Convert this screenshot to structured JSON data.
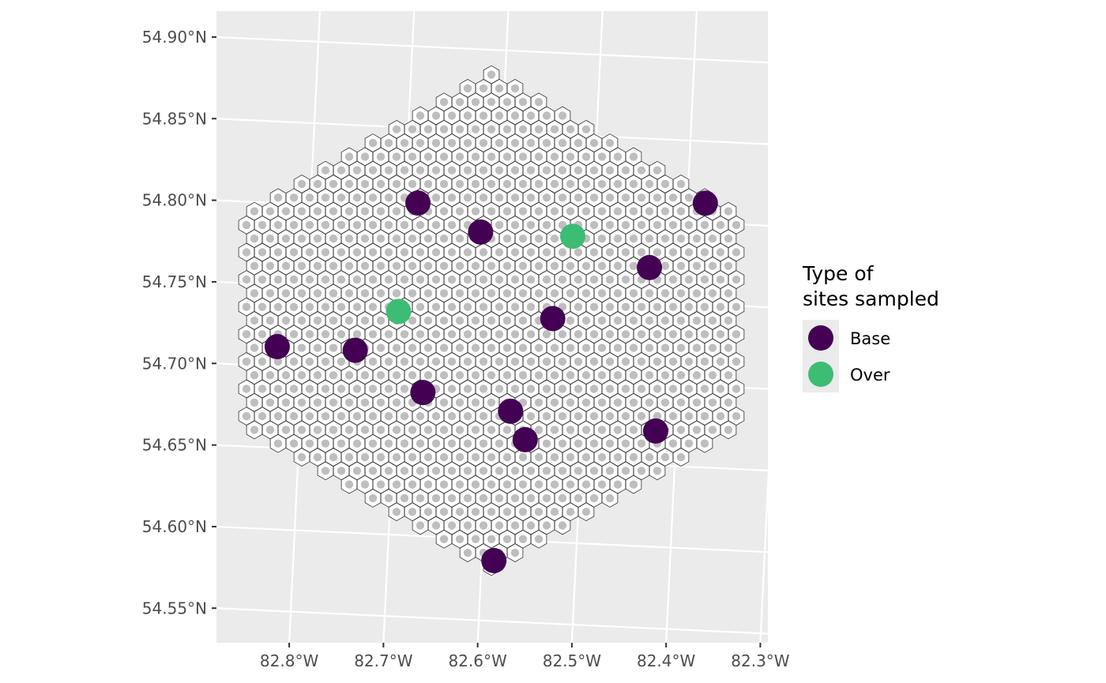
{
  "chart_data": {
    "type": "scatter",
    "title": "",
    "xlabel": "",
    "ylabel": "",
    "xlim": [
      -82.86,
      -82.28
    ],
    "ylim": [
      54.54,
      54.93
    ],
    "x_ticks": [
      "82.8°W",
      "82.7°W",
      "82.6°W",
      "82.5°W",
      "82.4°W",
      "82.3°W"
    ],
    "y_ticks": [
      "54.90°N",
      "54.85°N",
      "54.80°N",
      "54.75°N",
      "54.70°N",
      "54.65°N",
      "54.60°N",
      "54.55°N"
    ],
    "grid": true,
    "background": "#ebebeb",
    "hexagon_grid": {
      "description": "hexagonal grid of sampling cells with grey centroid dots",
      "fill": "#ffffff",
      "stroke": "#333333",
      "dot_color": "#bebebe"
    },
    "legend": {
      "title_line1": "Type of",
      "title_line2": "sites sampled",
      "position": "right",
      "entries": [
        {
          "label": "Base",
          "color": "#440154"
        },
        {
          "label": "Over",
          "color": "#3dbc74"
        }
      ]
    },
    "series": [
      {
        "name": "Base",
        "color": "#440154",
        "points": [
          {
            "lon": -82.686,
            "lat": 54.804
          },
          {
            "lon": -82.618,
            "lat": 54.788
          },
          {
            "lon": -82.381,
            "lat": 54.812
          },
          {
            "lon": -82.437,
            "lat": 54.771
          },
          {
            "lon": -82.537,
            "lat": 54.737
          },
          {
            "lon": -82.828,
            "lat": 54.712
          },
          {
            "lon": -82.745,
            "lat": 54.712
          },
          {
            "lon": -82.671,
            "lat": 54.688
          },
          {
            "lon": -82.577,
            "lat": 54.679
          },
          {
            "lon": -82.56,
            "lat": 54.662
          },
          {
            "lon": -82.422,
            "lat": 54.671
          },
          {
            "lon": -82.587,
            "lat": 54.587
          }
        ]
      },
      {
        "name": "Over",
        "color": "#3dbc74",
        "points": [
          {
            "lon": -82.52,
            "lat": 54.788
          },
          {
            "lon": -82.701,
            "lat": 54.737
          }
        ]
      }
    ]
  }
}
